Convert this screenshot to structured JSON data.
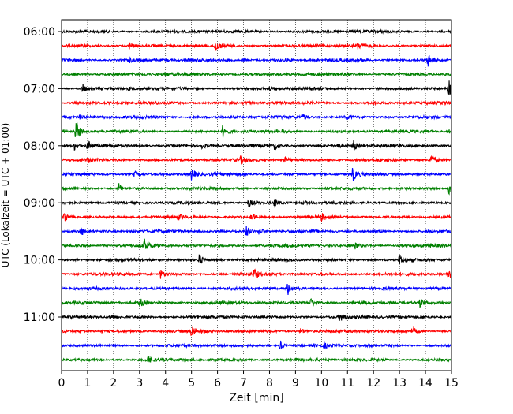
{
  "chart_data": {
    "type": "line",
    "title": "",
    "xlabel": "Zeit  [min]",
    "ylabel": "UTC (Lokalzeit = UTC + 01:00)",
    "xlim": [
      0,
      15
    ],
    "x_ticks": [
      "0",
      "1",
      "2",
      "3",
      "4",
      "5",
      "6",
      "7",
      "8",
      "9",
      "10",
      "11",
      "12",
      "13",
      "14",
      "15"
    ],
    "y_tick_labels": [
      "06:00",
      "07:00",
      "08:00",
      "09:00",
      "10:00",
      "11:00"
    ],
    "grid": "vertical-dotted",
    "trace_colors": [
      "#000000",
      "#ff0000",
      "#0000ff",
      "#008000"
    ],
    "traces": [
      {
        "time": "06:00",
        "color": "#000000",
        "events": []
      },
      {
        "time": "06:15",
        "color": "#ff0000",
        "events": [
          [
            2.6,
            0.5
          ],
          [
            5.9,
            0.9
          ],
          [
            9.7,
            0.25
          ],
          [
            11.4,
            0.45
          ]
        ]
      },
      {
        "time": "06:30",
        "color": "#0000ff",
        "events": [
          [
            2.6,
            0.3
          ],
          [
            7.0,
            0.2
          ],
          [
            14.1,
            0.9
          ]
        ]
      },
      {
        "time": "06:45",
        "color": "#008000",
        "events": [
          [
            4.0,
            0.15
          ],
          [
            9.3,
            0.2
          ]
        ]
      },
      {
        "time": "07:00",
        "color": "#000000",
        "events": [
          [
            0.8,
            0.7
          ],
          [
            2.6,
            0.25
          ],
          [
            8.0,
            0.3
          ],
          [
            14.9,
            1.1
          ]
        ]
      },
      {
        "time": "07:15",
        "color": "#ff0000",
        "events": [
          [
            12.0,
            0.15
          ]
        ]
      },
      {
        "time": "07:30",
        "color": "#0000ff",
        "events": [
          [
            0.7,
            0.3
          ],
          [
            9.3,
            0.4
          ],
          [
            11.0,
            0.25
          ]
        ]
      },
      {
        "time": "07:45",
        "color": "#008000",
        "events": [
          [
            0.55,
            1.6
          ],
          [
            6.2,
            0.9
          ],
          [
            8.5,
            0.2
          ],
          [
            14.9,
            0.3
          ]
        ]
      },
      {
        "time": "08:00",
        "color": "#000000",
        "events": [
          [
            0.5,
            0.6
          ],
          [
            1.0,
            0.8
          ],
          [
            5.4,
            0.4
          ],
          [
            8.2,
            0.6
          ],
          [
            10.6,
            0.5
          ],
          [
            11.2,
            0.9
          ]
        ]
      },
      {
        "time": "08:15",
        "color": "#ff0000",
        "events": [
          [
            1.0,
            0.35
          ],
          [
            6.9,
            0.5
          ],
          [
            8.6,
            0.35
          ],
          [
            14.2,
            1.0
          ]
        ]
      },
      {
        "time": "08:30",
        "color": "#0000ff",
        "events": [
          [
            2.8,
            0.4
          ],
          [
            5.0,
            0.9
          ],
          [
            11.2,
            0.9
          ]
        ]
      },
      {
        "time": "08:45",
        "color": "#008000",
        "events": [
          [
            2.2,
            0.7
          ],
          [
            14.9,
            0.9
          ]
        ]
      },
      {
        "time": "09:00",
        "color": "#000000",
        "events": [
          [
            7.2,
            0.6
          ],
          [
            8.2,
            0.7
          ],
          [
            9.3,
            0.3
          ]
        ]
      },
      {
        "time": "09:15",
        "color": "#ff0000",
        "events": [
          [
            0.1,
            0.8
          ],
          [
            4.5,
            0.4
          ],
          [
            7.3,
            0.6
          ],
          [
            10.0,
            0.5
          ]
        ]
      },
      {
        "time": "09:30",
        "color": "#0000ff",
        "events": [
          [
            0.7,
            0.9
          ],
          [
            7.1,
            0.8
          ],
          [
            7.6,
            0.5
          ]
        ]
      },
      {
        "time": "09:45",
        "color": "#008000",
        "events": [
          [
            3.2,
            0.9
          ],
          [
            11.3,
            0.4
          ],
          [
            14.1,
            0.3
          ]
        ]
      },
      {
        "time": "10:00",
        "color": "#000000",
        "events": [
          [
            5.3,
            0.7
          ],
          [
            13.0,
            0.7
          ]
        ]
      },
      {
        "time": "10:15",
        "color": "#ff0000",
        "events": [
          [
            3.8,
            0.6
          ],
          [
            7.4,
            0.7
          ],
          [
            14.9,
            0.8
          ]
        ]
      },
      {
        "time": "10:30",
        "color": "#0000ff",
        "events": [
          [
            8.7,
            0.9
          ]
        ]
      },
      {
        "time": "10:45",
        "color": "#008000",
        "events": [
          [
            3.0,
            0.7
          ],
          [
            9.6,
            0.6
          ],
          [
            13.8,
            0.7
          ]
        ]
      },
      {
        "time": "11:00",
        "color": "#000000",
        "events": [
          [
            1.9,
            0.3
          ],
          [
            10.7,
            0.6
          ]
        ]
      },
      {
        "time": "11:15",
        "color": "#ff0000",
        "events": [
          [
            5.0,
            0.9
          ],
          [
            9.2,
            0.5
          ],
          [
            13.5,
            0.6
          ]
        ]
      },
      {
        "time": "11:30",
        "color": "#0000ff",
        "events": [
          [
            8.4,
            0.6
          ],
          [
            10.1,
            0.3
          ]
        ]
      },
      {
        "time": "11:45",
        "color": "#008000",
        "events": [
          [
            3.3,
            0.5
          ]
        ]
      }
    ]
  }
}
